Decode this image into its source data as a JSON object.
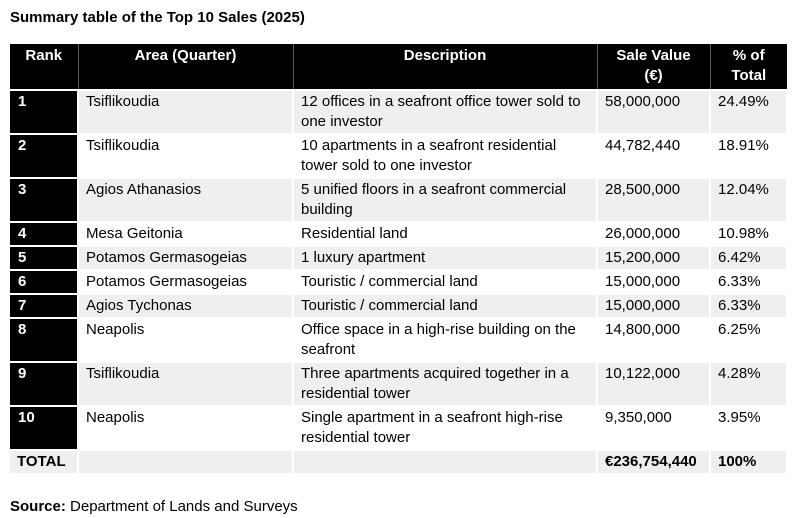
{
  "title": "Summary table of the Top 10 Sales (2025)",
  "colors": {
    "header_bg": "#000000",
    "header_text": "#ffffff",
    "row_stripe": "#efefef"
  },
  "table": {
    "headers": {
      "rank": "Rank",
      "area": "Area (Quarter)",
      "description": "Description",
      "sale_value_line1": "Sale Value",
      "sale_value_line2": "(€)",
      "pct_line1": "% of",
      "pct_line2": "Total"
    },
    "rows": [
      {
        "rank": "1",
        "area": "Tsiflikoudia",
        "description": "12 offices in a seafront office tower sold to one investor",
        "sale_value": "58,000,000",
        "pct": "24.49%"
      },
      {
        "rank": "2",
        "area": "Tsiflikoudia",
        "description": "10 apartments in a seafront residential tower sold to one investor",
        "sale_value": "44,782,440",
        "pct": "18.91%"
      },
      {
        "rank": "3",
        "area": "Agios Athanasios",
        "description": "5 unified floors in a seafront commercial building",
        "sale_value": "28,500,000",
        "pct": "12.04%"
      },
      {
        "rank": "4",
        "area": "Mesa Geitonia",
        "description": "Residential land",
        "sale_value": "26,000,000",
        "pct": "10.98%"
      },
      {
        "rank": "5",
        "area": "Potamos Germasogeias",
        "description": "1 luxury apartment",
        "sale_value": "15,200,000",
        "pct": "6.42%"
      },
      {
        "rank": "6",
        "area": "Potamos Germasogeias",
        "description": "Touristic / commercial land",
        "sale_value": "15,000,000",
        "pct": "6.33%"
      },
      {
        "rank": "7",
        "area": "Agios Tychonas",
        "description": "Touristic / commercial land",
        "sale_value": "15,000,000",
        "pct": "6.33%"
      },
      {
        "rank": "8",
        "area": "Neapolis",
        "description": "Office space in a high-rise building on the seafront",
        "sale_value": "14,800,000",
        "pct": "6.25%"
      },
      {
        "rank": "9",
        "area": "Tsiflikoudia",
        "description": "Three apartments acquired together in a residential tower",
        "sale_value": "10,122,000",
        "pct": "4.28%"
      },
      {
        "rank": "10",
        "area": "Neapolis",
        "description": "Single apartment in a seafront high-rise residential tower",
        "sale_value": "9,350,000",
        "pct": "3.95%"
      }
    ],
    "total": {
      "label": "TOTAL",
      "sale_value": "€236,754,440",
      "pct": "100%"
    }
  },
  "source": {
    "label": "Source:",
    "text": " Department of Lands and Surveys"
  },
  "chart_data": {
    "type": "table",
    "title": "Summary table of the Top 10 Sales (2025)",
    "columns": [
      "Rank",
      "Area (Quarter)",
      "Description",
      "Sale Value (€)",
      "% of Total"
    ],
    "rows": [
      [
        1,
        "Tsiflikoudia",
        "12 offices in a seafront office tower sold to one investor",
        58000000,
        24.49
      ],
      [
        2,
        "Tsiflikoudia",
        "10 apartments in a seafront residential tower sold to one investor",
        44782440,
        18.91
      ],
      [
        3,
        "Agios Athanasios",
        "5 unified floors in a seafront commercial building",
        28500000,
        12.04
      ],
      [
        4,
        "Mesa Geitonia",
        "Residential land",
        26000000,
        10.98
      ],
      [
        5,
        "Potamos Germasogeias",
        "1 luxury apartment",
        15200000,
        6.42
      ],
      [
        6,
        "Potamos Germasogeias",
        "Touristic / commercial land",
        15000000,
        6.33
      ],
      [
        7,
        "Agios Tychonas",
        "Touristic / commercial land",
        15000000,
        6.33
      ],
      [
        8,
        "Neapolis",
        "Office space in a high-rise building on the seafront",
        14800000,
        6.25
      ],
      [
        9,
        "Tsiflikoudia",
        "Three apartments acquired together in a residential tower",
        10122000,
        4.28
      ],
      [
        10,
        "Neapolis",
        "Single apartment in a seafront high-rise residential tower",
        9350000,
        3.95
      ]
    ],
    "total_row": [
      "TOTAL",
      "",
      "",
      236754440,
      100
    ],
    "source": "Department of Lands and Surveys"
  }
}
